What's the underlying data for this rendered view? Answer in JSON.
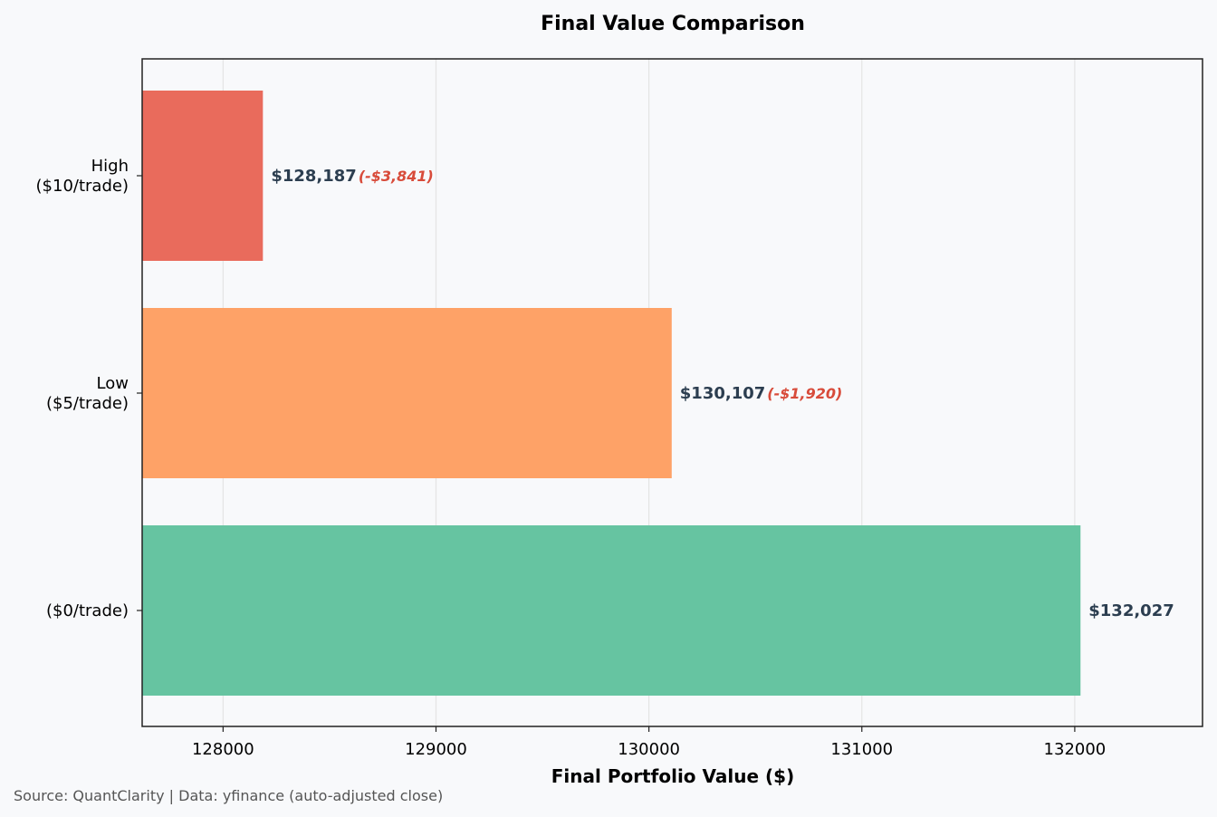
{
  "chart_data": {
    "type": "bar",
    "orientation": "horizontal",
    "title": "Final Value Comparison",
    "xlabel": "Final Portfolio Value ($)",
    "ylabel": "",
    "xlim": [
      127620,
      132600
    ],
    "xticks": [
      128000,
      129000,
      130000,
      131000,
      132000
    ],
    "xtick_labels": [
      "128000",
      "129000",
      "130000",
      "131000",
      "132000"
    ],
    "grid": "vertical",
    "categories": [
      {
        "lines": [
          "High",
          "($10/trade)"
        ],
        "value": 128187,
        "value_label": "$128,187",
        "delta_label": "(-$3,841)",
        "color": "#e96b5c"
      },
      {
        "lines": [
          "Low",
          "($5/trade)"
        ],
        "value": 130107,
        "value_label": "$130,107",
        "delta_label": "(-$1,920)",
        "color": "#fea267"
      },
      {
        "lines": [
          "($0/trade)"
        ],
        "value": 132027,
        "value_label": "$132,027",
        "delta_label": "",
        "color": "#66c4a1"
      }
    ]
  },
  "source_note": "Source: QuantClarity | Data: yfinance (auto-adjusted close)",
  "colors": {
    "background": "#f8f9fb",
    "value_text": "#2c3e50",
    "delta_text": "#d84b3a",
    "grid": "#e4e4e4",
    "axis": "#222222"
  }
}
